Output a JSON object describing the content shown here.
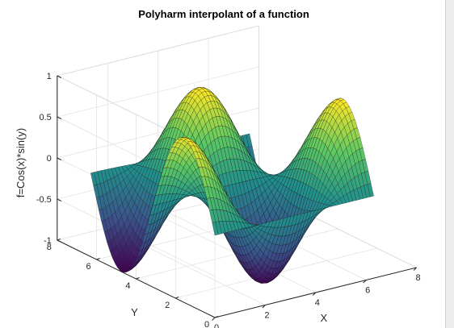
{
  "chart_data": {
    "type": "surface",
    "title": "Polyharm interpolant of a function",
    "xlabel": "X",
    "ylabel": "Y",
    "zlabel": "f=Cos(x)*sin(y)",
    "function": "cos(x)*sin(y)",
    "x_range": [
      0,
      8
    ],
    "y_range": [
      0,
      8
    ],
    "z_range": [
      -1,
      1
    ],
    "x_ticks": [
      "0",
      "2",
      "4",
      "6",
      "8"
    ],
    "y_ticks": [
      "0",
      "2",
      "4",
      "6",
      "8"
    ],
    "z_ticks": [
      "-1",
      "-0.5",
      "0",
      "0.5",
      "1"
    ],
    "surface_domain": {
      "x": [
        0,
        6.3
      ],
      "y": [
        0,
        6.3
      ]
    },
    "grid": "on",
    "colormap": [
      "#440154",
      "#3b528b",
      "#21908d",
      "#5dc963",
      "#fde725"
    ]
  }
}
